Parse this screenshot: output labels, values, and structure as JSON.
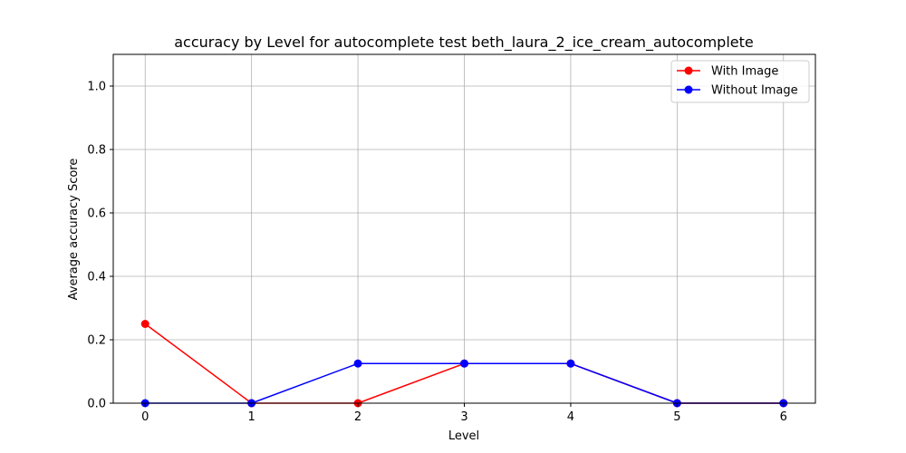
{
  "chart_data": {
    "type": "line",
    "title": "accuracy by Level for autocomplete test beth_laura_2_ice_cream_autocomplete",
    "xlabel": "Level",
    "ylabel": "Average accuracy Score",
    "x": [
      0,
      1,
      2,
      3,
      4,
      5,
      6
    ],
    "xlim": [
      -0.3,
      6.3
    ],
    "ylim": [
      0,
      1.1
    ],
    "xticks": [
      0,
      1,
      2,
      3,
      4,
      5,
      6
    ],
    "yticks": [
      0.0,
      0.2,
      0.4,
      0.6,
      0.8,
      1.0
    ],
    "ytick_labels": [
      "0.0",
      "0.2",
      "0.4",
      "0.6",
      "0.8",
      "1.0"
    ],
    "grid": true,
    "legend_position": "top-right",
    "series": [
      {
        "name": "With Image",
        "color": "#ff0000",
        "marker": "circle",
        "values": [
          0.25,
          0.0,
          0.0,
          0.125,
          0.125,
          0.0,
          0.0
        ]
      },
      {
        "name": "Without Image",
        "color": "#0000ff",
        "marker": "circle",
        "values": [
          0.0,
          0.0,
          0.125,
          0.125,
          0.125,
          0.0,
          0.0
        ]
      }
    ]
  }
}
